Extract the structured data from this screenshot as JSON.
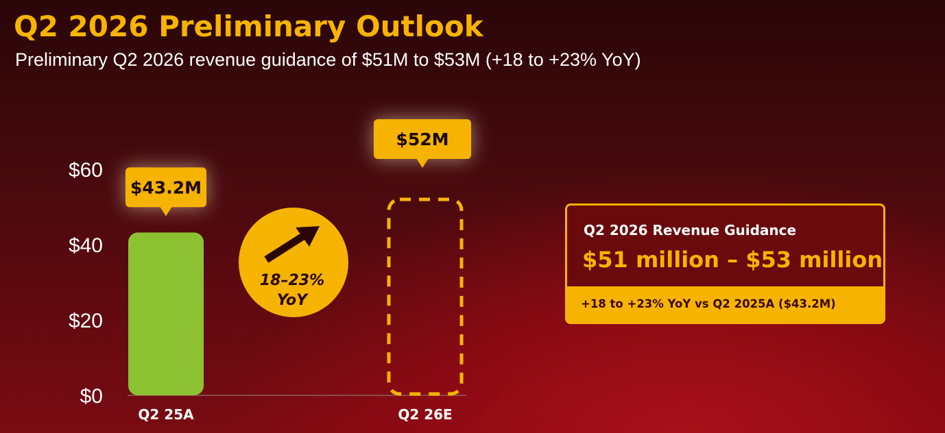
{
  "title": "Q2 2026 Preliminary Outlook",
  "subtitle": "Preliminary Q2 2026 revenue guidance of $51M to $53M (+18 to +23% YoY)",
  "colors": {
    "accent": "#f6b400",
    "bar_actual": "#8cc232",
    "background": "#5a0a0e"
  },
  "chart_data": {
    "type": "bar",
    "categories": [
      "Q2 25A",
      "Q2 26E"
    ],
    "values": [
      43.2,
      52
    ],
    "styles": [
      "solid",
      "dashed-estimate"
    ],
    "data_labels": [
      "$43.2M",
      "$52M"
    ],
    "ylim": [
      0,
      60
    ],
    "yticks": [
      0,
      20,
      40,
      60
    ],
    "ytick_labels": [
      "$0",
      "$20",
      "$40",
      "$60"
    ],
    "xlabel": "",
    "ylabel": "",
    "growth_badge": {
      "line1": "18–23%",
      "line2": "YoY",
      "icon": "arrow-up-right-icon"
    }
  },
  "guidance": {
    "title": "Q2 2026 Revenue Guidance",
    "range": "$51 million – $53 million",
    "footnote": "+18 to +23% YoY vs Q2 2025A ($43.2M)"
  }
}
